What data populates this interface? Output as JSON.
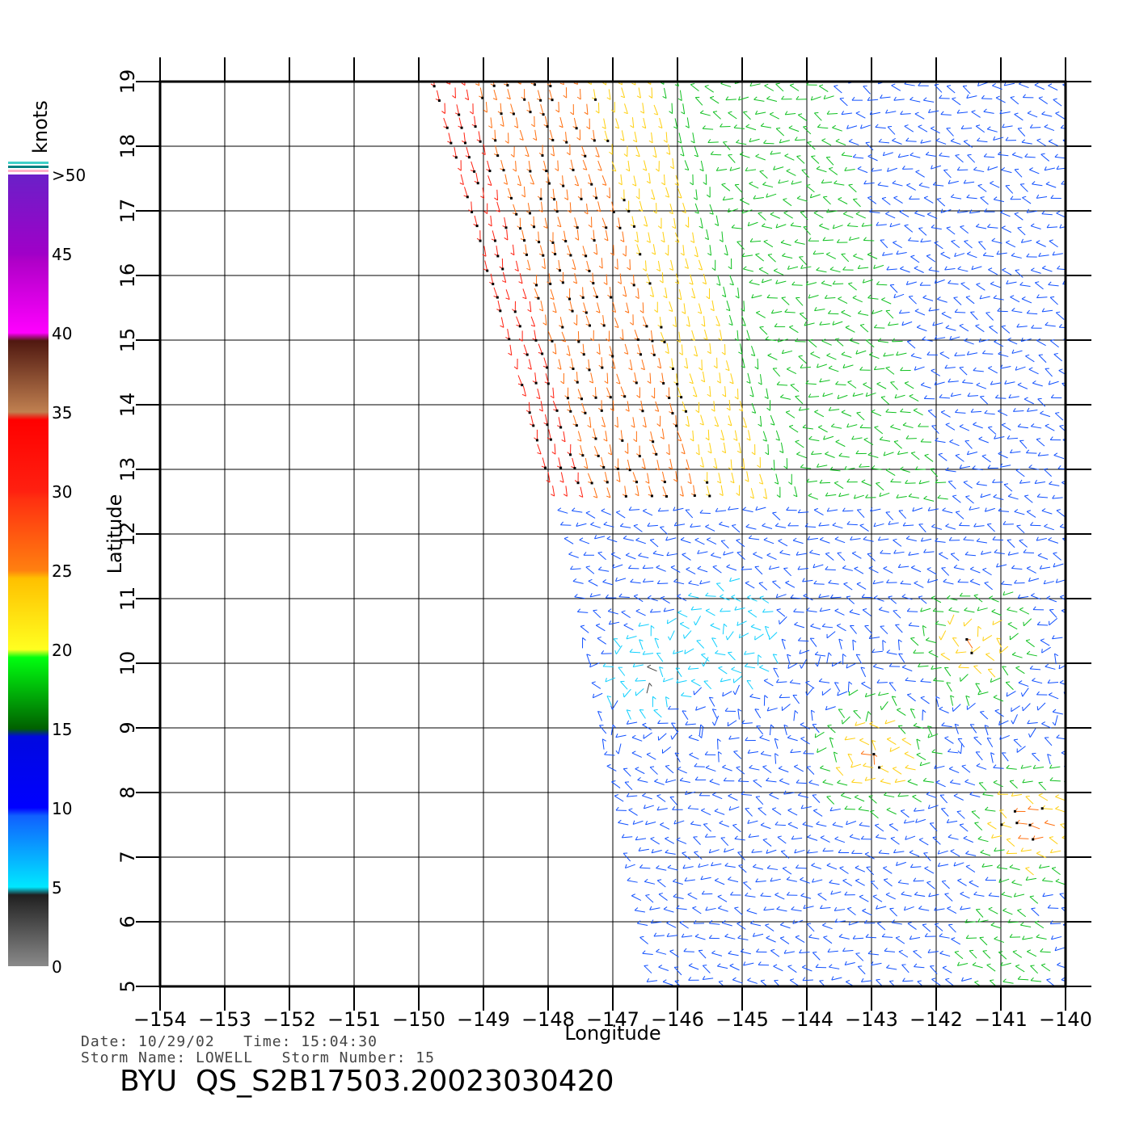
{
  "map": {
    "x_axis_title": "Longitude",
    "y_axis_title": "Latitude",
    "lon_range": [
      -154,
      -140
    ],
    "lat_range": [
      5,
      19
    ],
    "lon_ticks": [
      "-154",
      "-153",
      "-152",
      "-151",
      "-150",
      "-149",
      "-148",
      "-147",
      "-146",
      "-145",
      "-144",
      "-143",
      "-142",
      "-141",
      "-140"
    ],
    "lat_ticks": [
      "5",
      "6",
      "7",
      "8",
      "9",
      "10",
      "11",
      "12",
      "13",
      "14",
      "15",
      "16",
      "17",
      "18",
      "19"
    ],
    "grid": true,
    "swath_left_edge": [
      [
        -149.8,
        19
      ],
      [
        -147.8,
        12
      ],
      [
        -146.5,
        5
      ]
    ],
    "wind_field": {
      "background_speed_knots": 12,
      "high_wind_band": {
        "lat_range": [
          12.5,
          19
        ],
        "speed_knots": 28
      },
      "calm_area": {
        "center": [
          -146.5,
          9.9
        ],
        "speed_knots": 3
      },
      "light_area": {
        "center": [
          -145.3,
          10.4
        ],
        "speed_knots": 6
      },
      "stronger_areas": [
        {
          "center": [
            -141.5,
            10.3
          ],
          "speed_knots": 26
        },
        {
          "center": [
            -143,
            8.6
          ],
          "speed_knots": 28
        },
        {
          "center": [
            -140.6,
            7.5
          ],
          "speed_knots": 30
        },
        {
          "center": [
            -141,
            5.6
          ],
          "speed_knots": 20
        }
      ]
    }
  },
  "colorbar": {
    "unit_label": "knots",
    "labels": [
      ">50",
      "45",
      "40",
      "35",
      "30",
      "25",
      "20",
      "15",
      "10",
      "5",
      "0"
    ],
    "colors": {
      "gt50": "#6a20c8",
      "40_45": "#c000c8",
      "45_50": "#9a00c8",
      "35_40": "#7a3a22",
      "30_35": "#ff2010",
      "25_30": "#ff7010",
      "20_25": "#ffd010",
      "15_20": "#10c020",
      "10_15": "#1050ff",
      "5_10": "#10d0ff",
      "0_5": "#404040"
    }
  },
  "footer": {
    "date_line": "Date: 10/29/02   Time: 15:04:30",
    "storm_line": "Storm Name: LOWELL   Storm Number: 15",
    "title": "BYU  QS_S2B17503.20023030420"
  }
}
